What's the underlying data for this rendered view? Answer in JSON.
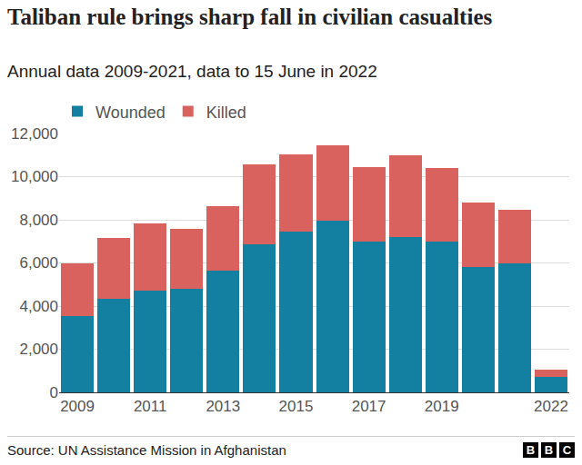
{
  "chart_data": {
    "type": "bar",
    "title": "Taliban rule brings sharp fall in civilian casualties",
    "subtitle": "Annual data 2009-2021, data to 15 June in 2022",
    "source": "Source: UN Assistance Mission in Afghanistan",
    "logo": [
      "B",
      "B",
      "C"
    ],
    "categories": [
      "2009",
      null,
      "2011",
      null,
      "2013",
      null,
      "2015",
      null,
      "2017",
      null,
      "2019",
      null,
      null,
      "2022"
    ],
    "series": [
      {
        "name": "Wounded",
        "color": "#1380a1",
        "values": [
          3550,
          4350,
          4700,
          4800,
          5650,
          6850,
          7450,
          7950,
          7000,
          7200,
          7000,
          5800,
          6000,
          700
        ]
      },
      {
        "name": "Killed",
        "color": "#d9625f",
        "values": [
          2450,
          2800,
          3150,
          2800,
          3000,
          3700,
          3600,
          3500,
          3450,
          3800,
          3400,
          3000,
          2450,
          350
        ]
      }
    ],
    "stacked": true,
    "ylim": [
      0,
      12000
    ],
    "yticks": [
      0,
      {
        "value": 2000,
        "label": "2,000"
      },
      {
        "value": 4000,
        "label": "4,000"
      },
      {
        "value": 6000,
        "label": "6,000"
      },
      {
        "value": 8000,
        "label": "8,000"
      },
      {
        "value": 10000,
        "label": "10,000"
      },
      {
        "value": 12000,
        "label": "12,000"
      }
    ],
    "grid": true,
    "legend": "top-left"
  }
}
